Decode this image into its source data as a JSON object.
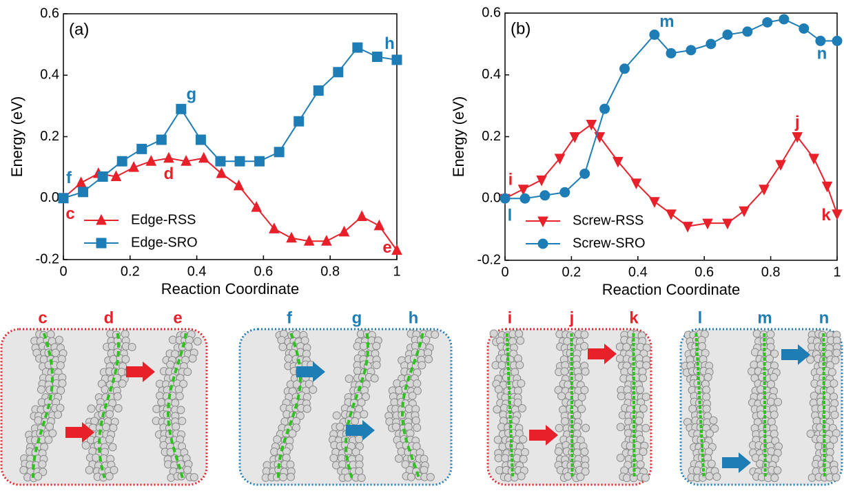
{
  "chart_data": [
    {
      "type": "line",
      "panel_label": "(a)",
      "xlabel": "Reaction Coordinate",
      "ylabel": "Energy (eV)",
      "xlim": [
        0,
        1
      ],
      "ylim": [
        -0.2,
        0.6
      ],
      "xticks": [
        0,
        0.2,
        0.4,
        0.6,
        0.8,
        1
      ],
      "yticks": [
        -0.2,
        {
          "value": 0,
          "label": "0.0"
        },
        0.2,
        0.4,
        0.6
      ],
      "legend": "lower left",
      "series": [
        {
          "name": "Edge-RSS",
          "color": "#e8202a",
          "marker": "triangle-up",
          "x": [
            0,
            0.053,
            0.105,
            0.158,
            0.211,
            0.263,
            0.316,
            0.368,
            0.421,
            0.474,
            0.526,
            0.579,
            0.632,
            0.684,
            0.737,
            0.789,
            0.842,
            0.895,
            0.947,
            1
          ],
          "values": [
            0,
            0.05,
            0.08,
            0.07,
            0.1,
            0.12,
            0.13,
            0.12,
            0.13,
            0.08,
            0.04,
            -0.03,
            -0.1,
            -0.13,
            -0.14,
            -0.14,
            -0.11,
            -0.06,
            -0.09,
            -0.17
          ]
        },
        {
          "name": "Edge-SRO",
          "color": "#1f7db5",
          "marker": "square",
          "x": [
            0,
            0.059,
            0.118,
            0.176,
            0.235,
            0.294,
            0.353,
            0.412,
            0.471,
            0.529,
            0.588,
            0.647,
            0.706,
            0.765,
            0.824,
            0.882,
            0.941,
            1
          ],
          "values": [
            0,
            0.02,
            0.07,
            0.12,
            0.16,
            0.19,
            0.29,
            0.19,
            0.12,
            0.12,
            0.12,
            0.15,
            0.25,
            0.35,
            0.41,
            0.49,
            0.46,
            0.45
          ]
        }
      ],
      "annotations": [
        "c",
        "f",
        "d",
        "g",
        "h",
        "e"
      ]
    },
    {
      "type": "line",
      "panel_label": "(b)",
      "xlabel": "Reaction Coordinate",
      "ylabel": "Energy (eV)",
      "xlim": [
        0,
        1
      ],
      "ylim": [
        -0.2,
        0.6
      ],
      "xticks": [
        0,
        0.2,
        0.4,
        0.6,
        0.8,
        1
      ],
      "yticks": [
        -0.2,
        {
          "value": 0,
          "label": "0.0"
        },
        0.2,
        0.4,
        0.6
      ],
      "legend": "lower left",
      "series": [
        {
          "name": "Screw-RSS",
          "color": "#e8202a",
          "marker": "triangle-down",
          "x": [
            0,
            0.055,
            0.11,
            0.165,
            0.21,
            0.26,
            0.285,
            0.34,
            0.395,
            0.45,
            0.5,
            0.55,
            0.61,
            0.67,
            0.72,
            0.78,
            0.83,
            0.88,
            0.93,
            0.97,
            1
          ],
          "values": [
            0,
            0.03,
            0.06,
            0.13,
            0.2,
            0.24,
            0.2,
            0.12,
            0.05,
            -0.01,
            -0.05,
            -0.09,
            -0.08,
            -0.08,
            -0.04,
            0.03,
            0.11,
            0.2,
            0.13,
            0.04,
            -0.05
          ]
        },
        {
          "name": "Screw-SRO",
          "color": "#1f7db5",
          "marker": "circle",
          "x": [
            0,
            0.06,
            0.12,
            0.18,
            0.24,
            0.3,
            0.36,
            0.45,
            0.5,
            0.56,
            0.62,
            0.67,
            0.73,
            0.79,
            0.84,
            0.9,
            0.95,
            1
          ],
          "values": [
            0,
            0,
            0.01,
            0.02,
            0.08,
            0.29,
            0.42,
            0.53,
            0.47,
            0.48,
            0.5,
            0.53,
            0.54,
            0.57,
            0.58,
            0.55,
            0.51,
            0.51
          ]
        }
      ],
      "annotations": [
        "i",
        "l",
        "j",
        "k",
        "m",
        "n"
      ]
    }
  ],
  "illustrations": [
    {
      "labels": [
        "c",
        "d",
        "e"
      ]
    },
    {
      "labels": [
        "f",
        "g",
        "h"
      ]
    },
    {
      "labels": [
        "i",
        "j",
        "k"
      ]
    },
    {
      "labels": [
        "l",
        "m",
        "n"
      ]
    }
  ]
}
